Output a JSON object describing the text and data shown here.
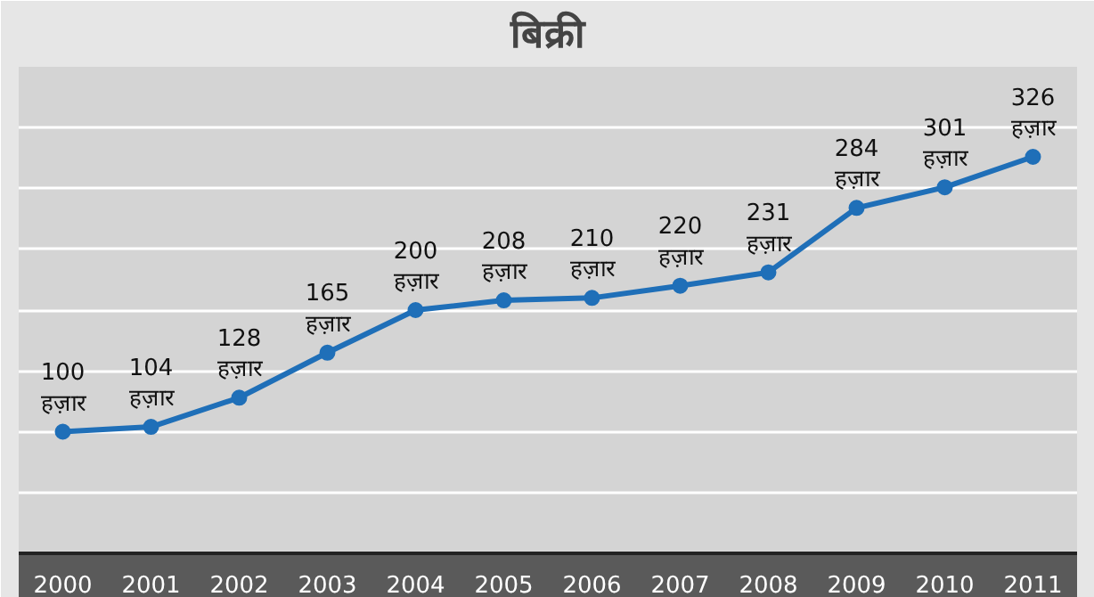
{
  "chart_data": {
    "type": "line",
    "title": "बिक्री",
    "categories": [
      "2000",
      "2001",
      "2002",
      "2003",
      "2004",
      "2005",
      "2006",
      "2007",
      "2008",
      "2009",
      "2010",
      "2011"
    ],
    "series": [
      {
        "color": "#1f6fb8",
        "values": [
          100,
          104,
          128,
          165,
          200,
          208,
          210,
          220,
          231,
          284,
          301,
          326
        ],
        "value_labels": [
          "100\nहज़ार",
          "104\nहज़ार",
          "128\nहज़ार",
          "165\nहज़ार",
          "200\nहज़ार",
          "208\nहज़ार",
          "210\nहज़ार",
          "220\nहज़ार",
          "231\nहज़ार",
          "284\nहज़ार",
          "301\nहज़ार",
          "326\nहज़ार"
        ]
      }
    ],
    "ylim": [
      0,
      400
    ],
    "yticks": [
      {
        "value": 0,
        "label": null
      },
      {
        "value": 50,
        "label": null
      },
      {
        "value": 100,
        "label": null
      },
      {
        "value": 150,
        "label": null
      },
      {
        "value": 200,
        "label": null
      },
      {
        "value": 250,
        "label": null
      },
      {
        "value": 300,
        "label": null
      },
      {
        "value": 350,
        "label": null
      }
    ],
    "grid": "y",
    "marker": "circle",
    "line_style": "solid",
    "tick_labels": "x"
  }
}
